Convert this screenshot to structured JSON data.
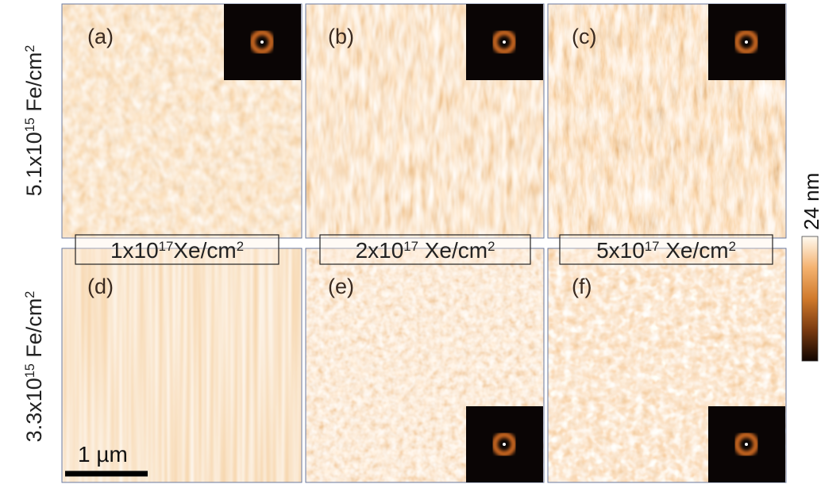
{
  "panels": [
    {
      "label": "(a)"
    },
    {
      "label": "(b)"
    },
    {
      "label": "(c)"
    },
    {
      "label": "(d)"
    },
    {
      "label": "(e)"
    },
    {
      "label": "(f)"
    }
  ],
  "rows": [
    {
      "amount": "5.1x10",
      "exp": "15",
      "unit": " Fe/cm",
      "unit_exp": "2"
    },
    {
      "amount": "3.3x10",
      "exp": "15",
      "unit": " Fe/cm",
      "unit_exp": "2"
    }
  ],
  "columns": [
    {
      "amount": "1x10",
      "exp": "17",
      "unit": "Xe/cm",
      "unit_exp": "2"
    },
    {
      "amount": "2x10",
      "exp": "17",
      "unit": " Xe/cm",
      "unit_exp": "2"
    },
    {
      "amount": "5x10",
      "exp": "17",
      "unit": " Xe/cm",
      "unit_exp": "2"
    }
  ],
  "scale_bar": "1 µm",
  "colorbar_label": "24 nm"
}
